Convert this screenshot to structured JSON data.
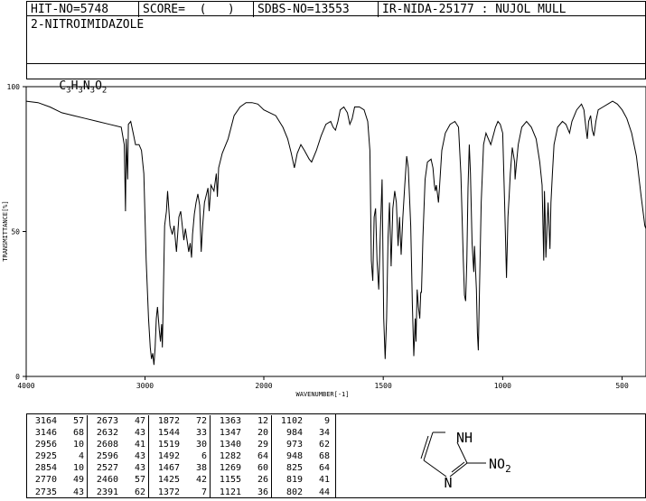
{
  "header": {
    "hit_no": "HIT-NO=5748",
    "score": "SCORE=  (   )",
    "sdbs_no": "SDBS-NO=13553",
    "ir_info": "IR-NIDA-25177 : NUJOL MULL"
  },
  "compound_name": "2-NITROIMIDAZOLE",
  "formula": {
    "c": "C",
    "c_n": "3",
    "h": "H",
    "h_n": "3",
    "n": "N",
    "n_n": "3",
    "o": "O",
    "o_n": "2"
  },
  "structure": {
    "nh_label": "NH",
    "n_label": "N",
    "no2_label": "NO",
    "no2_sub": "2"
  },
  "chart_data": {
    "type": "line",
    "title": "",
    "xlabel": "WAVENUMBER[-1]",
    "ylabel": "TRANSMITTANCE[%]",
    "xlim": [
      4000,
      400
    ],
    "ylim": [
      0,
      100
    ],
    "x_ticks": [
      "4000",
      "3000",
      "2000",
      "1500",
      "1000",
      "500"
    ],
    "y_ticks": [
      "100",
      "50",
      "0"
    ],
    "grid": false,
    "series": [
      {
        "name": "",
        "points": [
          [
            4000,
            95
          ],
          [
            3900,
            94.5
          ],
          [
            3800,
            93
          ],
          [
            3700,
            91
          ],
          [
            3600,
            90
          ],
          [
            3500,
            89
          ],
          [
            3400,
            88
          ],
          [
            3300,
            87
          ],
          [
            3200,
            86
          ],
          [
            3175,
            80
          ],
          [
            3164,
            57
          ],
          [
            3158,
            82
          ],
          [
            3146,
            68
          ],
          [
            3140,
            87
          ],
          [
            3120,
            88
          ],
          [
            3100,
            84
          ],
          [
            3080,
            80
          ],
          [
            3050,
            80
          ],
          [
            3030,
            78
          ],
          [
            3010,
            70
          ],
          [
            3000,
            55
          ],
          [
            2990,
            40
          ],
          [
            2970,
            20
          ],
          [
            2956,
            10
          ],
          [
            2945,
            6
          ],
          [
            2935,
            8
          ],
          [
            2925,
            4
          ],
          [
            2915,
            10
          ],
          [
            2905,
            20
          ],
          [
            2895,
            24
          ],
          [
            2880,
            16
          ],
          [
            2870,
            12
          ],
          [
            2860,
            18
          ],
          [
            2854,
            10
          ],
          [
            2845,
            30
          ],
          [
            2835,
            52
          ],
          [
            2820,
            57
          ],
          [
            2810,
            64
          ],
          [
            2800,
            58
          ],
          [
            2790,
            52
          ],
          [
            2770,
            49
          ],
          [
            2755,
            52
          ],
          [
            2735,
            43
          ],
          [
            2715,
            55
          ],
          [
            2700,
            57
          ],
          [
            2673,
            47
          ],
          [
            2660,
            51
          ],
          [
            2632,
            43
          ],
          [
            2620,
            46
          ],
          [
            2608,
            41
          ],
          [
            2600,
            49
          ],
          [
            2585,
            56
          ],
          [
            2570,
            60
          ],
          [
            2555,
            63
          ],
          [
            2540,
            59
          ],
          [
            2527,
            43
          ],
          [
            2515,
            52
          ],
          [
            2500,
            60
          ],
          [
            2470,
            65
          ],
          [
            2460,
            57
          ],
          [
            2445,
            66
          ],
          [
            2420,
            64
          ],
          [
            2400,
            70
          ],
          [
            2391,
            62
          ],
          [
            2380,
            72
          ],
          [
            2350,
            77
          ],
          [
            2300,
            82
          ],
          [
            2250,
            90
          ],
          [
            2200,
            93
          ],
          [
            2150,
            94.5
          ],
          [
            2100,
            94.5
          ],
          [
            2050,
            94
          ],
          [
            2000,
            92
          ],
          [
            1950,
            90
          ],
          [
            1920,
            86
          ],
          [
            1900,
            82
          ],
          [
            1885,
            77
          ],
          [
            1872,
            72
          ],
          [
            1860,
            77
          ],
          [
            1845,
            80
          ],
          [
            1830,
            78
          ],
          [
            1810,
            75
          ],
          [
            1800,
            74
          ],
          [
            1780,
            78
          ],
          [
            1760,
            83
          ],
          [
            1740,
            87
          ],
          [
            1720,
            88
          ],
          [
            1710,
            86
          ],
          [
            1700,
            85
          ],
          [
            1690,
            88
          ],
          [
            1680,
            92
          ],
          [
            1665,
            93
          ],
          [
            1650,
            91
          ],
          [
            1640,
            87
          ],
          [
            1630,
            89
          ],
          [
            1620,
            93
          ],
          [
            1600,
            93
          ],
          [
            1580,
            92
          ],
          [
            1565,
            88
          ],
          [
            1556,
            78
          ],
          [
            1550,
            40
          ],
          [
            1544,
            33
          ],
          [
            1538,
            55
          ],
          [
            1532,
            58
          ],
          [
            1526,
            40
          ],
          [
            1519,
            30
          ],
          [
            1512,
            50
          ],
          [
            1505,
            68
          ],
          [
            1498,
            20
          ],
          [
            1492,
            6
          ],
          [
            1486,
            20
          ],
          [
            1480,
            48
          ],
          [
            1474,
            60
          ],
          [
            1467,
            38
          ],
          [
            1460,
            58
          ],
          [
            1452,
            64
          ],
          [
            1445,
            60
          ],
          [
            1438,
            45
          ],
          [
            1432,
            55
          ],
          [
            1425,
            42
          ],
          [
            1418,
            55
          ],
          [
            1410,
            66
          ],
          [
            1402,
            76
          ],
          [
            1395,
            72
          ],
          [
            1385,
            52
          ],
          [
            1378,
            25
          ],
          [
            1372,
            7
          ],
          [
            1366,
            20
          ],
          [
            1363,
            12
          ],
          [
            1358,
            30
          ],
          [
            1353,
            24
          ],
          [
            1347,
            20
          ],
          [
            1343,
            29
          ],
          [
            1340,
            29
          ],
          [
            1334,
            48
          ],
          [
            1325,
            68
          ],
          [
            1315,
            74
          ],
          [
            1300,
            75
          ],
          [
            1292,
            72
          ],
          [
            1286,
            66
          ],
          [
            1282,
            64
          ],
          [
            1278,
            66
          ],
          [
            1273,
            63
          ],
          [
            1269,
            60
          ],
          [
            1264,
            66
          ],
          [
            1255,
            78
          ],
          [
            1240,
            84
          ],
          [
            1220,
            87
          ],
          [
            1200,
            88
          ],
          [
            1185,
            86
          ],
          [
            1175,
            70
          ],
          [
            1165,
            40
          ],
          [
            1160,
            28
          ],
          [
            1155,
            26
          ],
          [
            1150,
            40
          ],
          [
            1145,
            65
          ],
          [
            1140,
            80
          ],
          [
            1135,
            70
          ],
          [
            1128,
            46
          ],
          [
            1124,
            40
          ],
          [
            1121,
            36
          ],
          [
            1118,
            45
          ],
          [
            1110,
            30
          ],
          [
            1106,
            15
          ],
          [
            1102,
            9
          ],
          [
            1097,
            30
          ],
          [
            1090,
            60
          ],
          [
            1080,
            80
          ],
          [
            1070,
            84
          ],
          [
            1060,
            82
          ],
          [
            1050,
            80
          ],
          [
            1040,
            83
          ],
          [
            1030,
            86
          ],
          [
            1020,
            88
          ],
          [
            1010,
            87
          ],
          [
            1000,
            84
          ],
          [
            992,
            60
          ],
          [
            984,
            34
          ],
          [
            978,
            55
          ],
          [
            973,
            62
          ],
          [
            968,
            70
          ],
          [
            960,
            79
          ],
          [
            950,
            74
          ],
          [
            948,
            68
          ],
          [
            944,
            72
          ],
          [
            935,
            80
          ],
          [
            920,
            86
          ],
          [
            900,
            88
          ],
          [
            880,
            86
          ],
          [
            860,
            82
          ],
          [
            845,
            74
          ],
          [
            835,
            66
          ],
          [
            828,
            40
          ],
          [
            825,
            64
          ],
          [
            822,
            55
          ],
          [
            819,
            41
          ],
          [
            815,
            50
          ],
          [
            810,
            60
          ],
          [
            802,
            44
          ],
          [
            798,
            60
          ],
          [
            792,
            70
          ],
          [
            785,
            80
          ],
          [
            770,
            86
          ],
          [
            750,
            88
          ],
          [
            735,
            87
          ],
          [
            720,
            84
          ],
          [
            710,
            88
          ],
          [
            690,
            92
          ],
          [
            670,
            94
          ],
          [
            660,
            92
          ],
          [
            652,
            86
          ],
          [
            646,
            82
          ],
          [
            640,
            88
          ],
          [
            632,
            90
          ],
          [
            625,
            85
          ],
          [
            618,
            83
          ],
          [
            610,
            88
          ],
          [
            600,
            92
          ],
          [
            580,
            93
          ],
          [
            560,
            94
          ],
          [
            540,
            95
          ],
          [
            520,
            94
          ],
          [
            500,
            92
          ],
          [
            480,
            89
          ],
          [
            460,
            84
          ],
          [
            440,
            76
          ],
          [
            420,
            62
          ],
          [
            405,
            52
          ],
          [
            400,
            51
          ]
        ]
      }
    ],
    "peak_table": {
      "columns": [
        [
          [
            "3164",
            "57"
          ],
          [
            "3146",
            "68"
          ],
          [
            "2956",
            "10"
          ],
          [
            "2925",
            "4"
          ],
          [
            "2854",
            "10"
          ],
          [
            "2770",
            "49"
          ],
          [
            "2735",
            "43"
          ]
        ],
        [
          [
            "2673",
            "47"
          ],
          [
            "2632",
            "43"
          ],
          [
            "2608",
            "41"
          ],
          [
            "2596",
            "43"
          ],
          [
            "2527",
            "43"
          ],
          [
            "2460",
            "57"
          ],
          [
            "2391",
            "62"
          ]
        ],
        [
          [
            "1872",
            "72"
          ],
          [
            "1544",
            "33"
          ],
          [
            "1519",
            "30"
          ],
          [
            "1492",
            "6"
          ],
          [
            "1467",
            "38"
          ],
          [
            "1425",
            "42"
          ],
          [
            "1372",
            "7"
          ]
        ],
        [
          [
            "1363",
            "12"
          ],
          [
            "1347",
            "20"
          ],
          [
            "1340",
            "29"
          ],
          [
            "1282",
            "64"
          ],
          [
            "1269",
            "60"
          ],
          [
            "1155",
            "26"
          ],
          [
            "1121",
            "36"
          ]
        ],
        [
          [
            "1102",
            "9"
          ],
          [
            "984",
            "34"
          ],
          [
            "973",
            "62"
          ],
          [
            "948",
            "68"
          ],
          [
            "825",
            "64"
          ],
          [
            "819",
            "41"
          ],
          [
            "802",
            "44"
          ]
        ]
      ]
    }
  }
}
